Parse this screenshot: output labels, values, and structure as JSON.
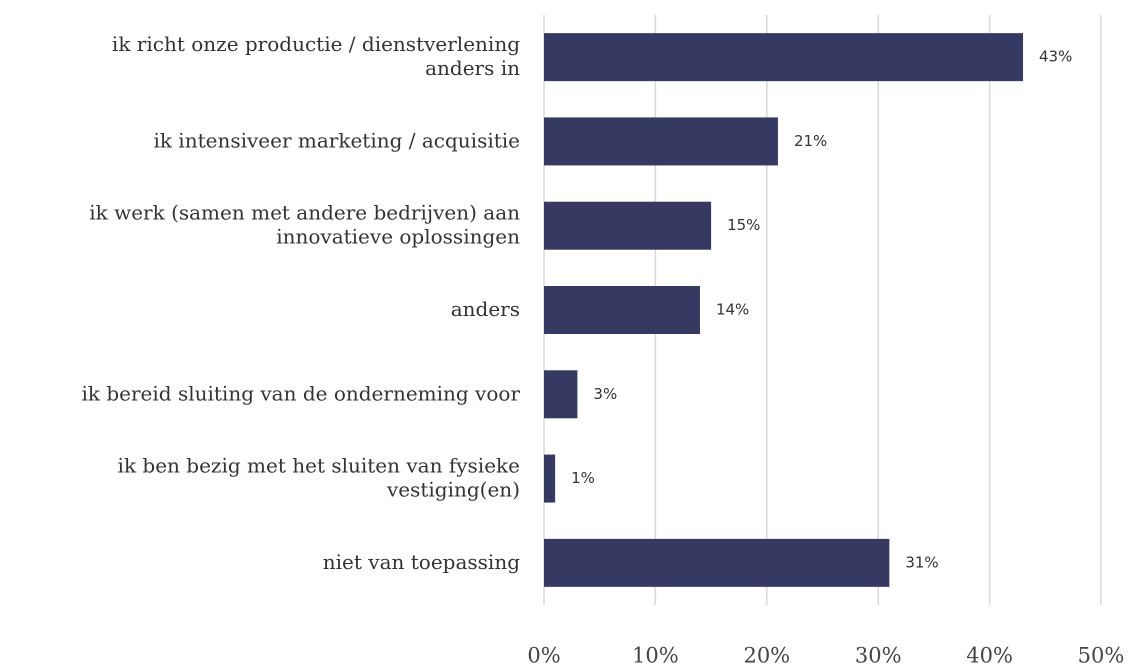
{
  "chart_data": {
    "type": "bar",
    "orientation": "horizontal",
    "categories": [
      "ik richt onze productie / dienstverlening\nanders in",
      "ik intensiveer marketing / acquisitie",
      "ik werk (samen met andere bedrijven) aan\ninnovatieve oplossingen",
      "anders",
      "ik bereid sluiting van de onderneming voor",
      "ik ben bezig met het sluiten van fysieke\nvestiging(en)",
      "niet van toepassing"
    ],
    "values": [
      43,
      21,
      15,
      14,
      3,
      1,
      31
    ],
    "value_labels": [
      "43%",
      "21%",
      "15%",
      "14%",
      "3%",
      "1%",
      "31%"
    ],
    "color": "#363a63",
    "xlim": [
      0,
      50
    ],
    "xticks": [
      {
        "value": 0,
        "label": "0%"
      },
      {
        "value": 10,
        "label": "10%"
      },
      {
        "value": 20,
        "label": "20%"
      },
      {
        "value": 30,
        "label": "30%"
      },
      {
        "value": 40,
        "label": "40%"
      },
      {
        "value": 50,
        "label": "50%"
      }
    ],
    "grid": true
  }
}
